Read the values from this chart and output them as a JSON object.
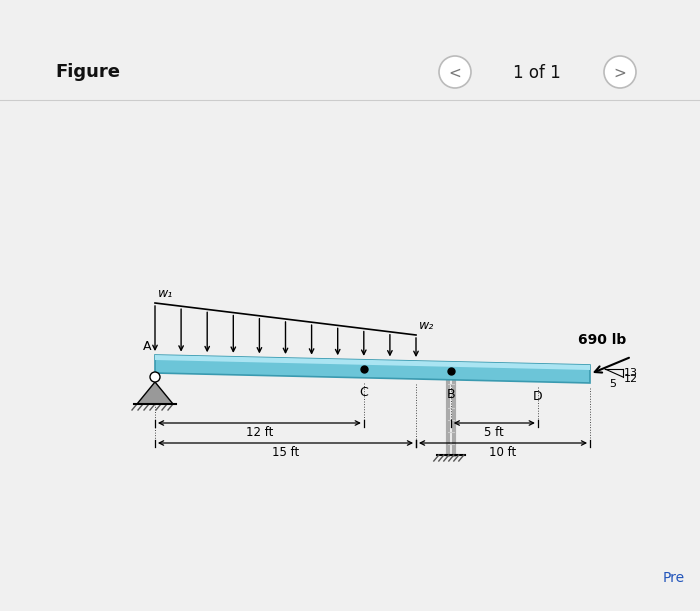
{
  "bg_color": "#e0e0e0",
  "panel_color": "#ebebeb",
  "title": "Figure",
  "nav_text": "1 of 1",
  "beam_color": "#6cc5d8",
  "beam_highlight": "#aae4f2",
  "beam_shadow": "#4a9ab0",
  "label_w1": "w₁",
  "label_w2": "w₂",
  "label_A": "A",
  "label_C": "C",
  "label_B": "B",
  "label_D": "D",
  "label_690": "690 lb",
  "label_13": "13",
  "label_12": "12",
  "label_5": "5",
  "dim_12ft": "12 ft",
  "dim_15ft": "15 ft",
  "dim_5ft": "5 ft",
  "dim_10ft": "10 ft",
  "pre_text": "Pre"
}
